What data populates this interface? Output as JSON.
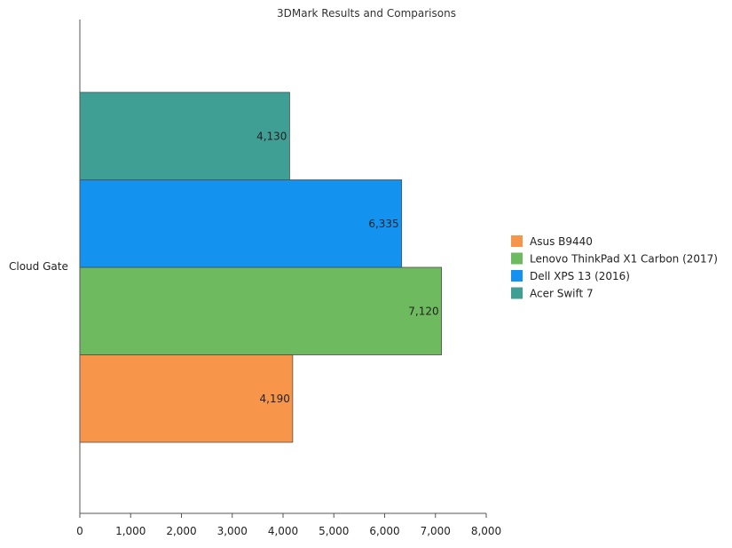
{
  "chart_data": {
    "type": "bar",
    "orientation": "horizontal",
    "title": "3DMark Results and Comparisons",
    "categories": [
      "Cloud Gate"
    ],
    "xlim": [
      0,
      8000
    ],
    "x_ticks": [
      "0",
      "1,000",
      "2,000",
      "3,000",
      "4,000",
      "5,000",
      "6,000",
      "7,000",
      "8,000"
    ],
    "x_tick_values": [
      0,
      1000,
      2000,
      3000,
      4000,
      5000,
      6000,
      7000,
      8000
    ],
    "legend_position": "right",
    "grid": false,
    "series": [
      {
        "name": "Asus B9440",
        "values": [
          4190
        ],
        "label": "4,190",
        "color": "#f7964a"
      },
      {
        "name": "Lenovo ThinkPad X1 Carbon (2017)",
        "values": [
          7120
        ],
        "label": "7,120",
        "color": "#6dbb5e"
      },
      {
        "name": "Dell XPS 13 (2016)",
        "values": [
          6335
        ],
        "label": "6,335",
        "color": "#1393ef"
      },
      {
        "name": "Acer Swift 7",
        "values": [
          4130
        ],
        "label": "4,130",
        "color": "#3f9f95"
      }
    ]
  }
}
